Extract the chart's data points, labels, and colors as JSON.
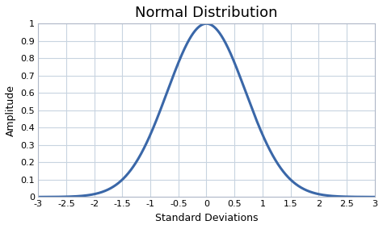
{
  "title": "Normal Distribution",
  "xlabel": "Standard Deviations",
  "ylabel": "Amplitude",
  "xlim": [
    -3,
    3
  ],
  "ylim": [
    0,
    1
  ],
  "xticks": [
    -3,
    -2.5,
    -2,
    -1.5,
    -1,
    -0.5,
    0,
    0.5,
    1,
    1.5,
    2,
    2.5,
    3
  ],
  "yticks": [
    0,
    0.1,
    0.2,
    0.3,
    0.4,
    0.5,
    0.6,
    0.7,
    0.8,
    0.9,
    1
  ],
  "line_color": "#3a67a8",
  "line_width": 2.2,
  "background_color": "#ffffff",
  "plot_bg_color": "#ffffff",
  "grid_color": "#c8d4e0",
  "title_fontsize": 13,
  "label_fontsize": 9,
  "tick_fontsize": 8,
  "sigma": 0.7
}
